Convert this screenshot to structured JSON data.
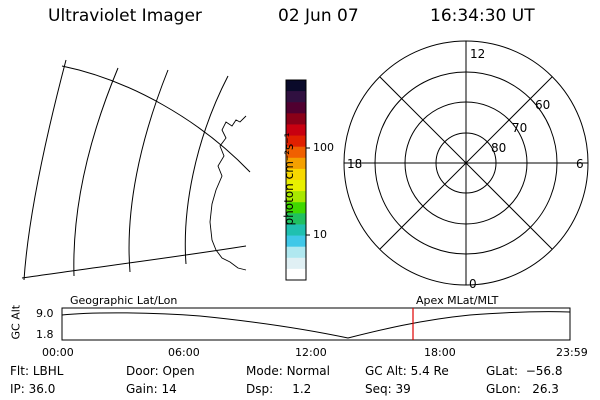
{
  "header": {
    "instrument": "Ultraviolet Imager",
    "date": "02 Jun 07",
    "time": "16:34:30 UT"
  },
  "colorbar": {
    "unit_label": "photon cm⁻²s⁻¹",
    "ticks": [
      "100",
      "10"
    ],
    "colors": [
      "#0a0a2a",
      "#301040",
      "#500030",
      "#8a0018",
      "#c80010",
      "#e02000",
      "#f06000",
      "#f4a000",
      "#f8d800",
      "#e8f000",
      "#a8e800",
      "#40d800",
      "#20c060",
      "#20c0b0",
      "#40c8e8",
      "#b0e8f0",
      "#e0f0f4",
      "#ffffff"
    ]
  },
  "polar_plot": {
    "mlt_labels": [
      "12",
      "6",
      "0",
      "18"
    ],
    "lat_labels": [
      "60",
      "70",
      "80"
    ]
  },
  "timeline": {
    "left_title": "Geographic Lat/Lon",
    "right_title": "Apex MLat/MLT",
    "axis_label": "GC Alt",
    "y_ticks": [
      "9.0",
      "1.8"
    ],
    "x_ticks": [
      "00:00",
      "06:00",
      "12:00",
      "18:00",
      "23:59"
    ],
    "marker_color": "#e00000"
  },
  "status": {
    "row1": [
      {
        "key": "Flt:",
        "val": "LBHL"
      },
      {
        "key": "Door:",
        "val": "Open"
      },
      {
        "key": "Mode:",
        "val": "Normal"
      },
      {
        "key": "GC Alt:",
        "val": "5.4 Re"
      },
      {
        "key": "GLat:",
        "val": "−56.8"
      }
    ],
    "row2": [
      {
        "key": "IP:",
        "val": "36.0"
      },
      {
        "key": "Gain:",
        "val": "14"
      },
      {
        "key": "Dsp:",
        "val": "1.2"
      },
      {
        "key": "Seq:",
        "val": "39"
      },
      {
        "key": "GLon:",
        "val": "26.3"
      }
    ]
  }
}
